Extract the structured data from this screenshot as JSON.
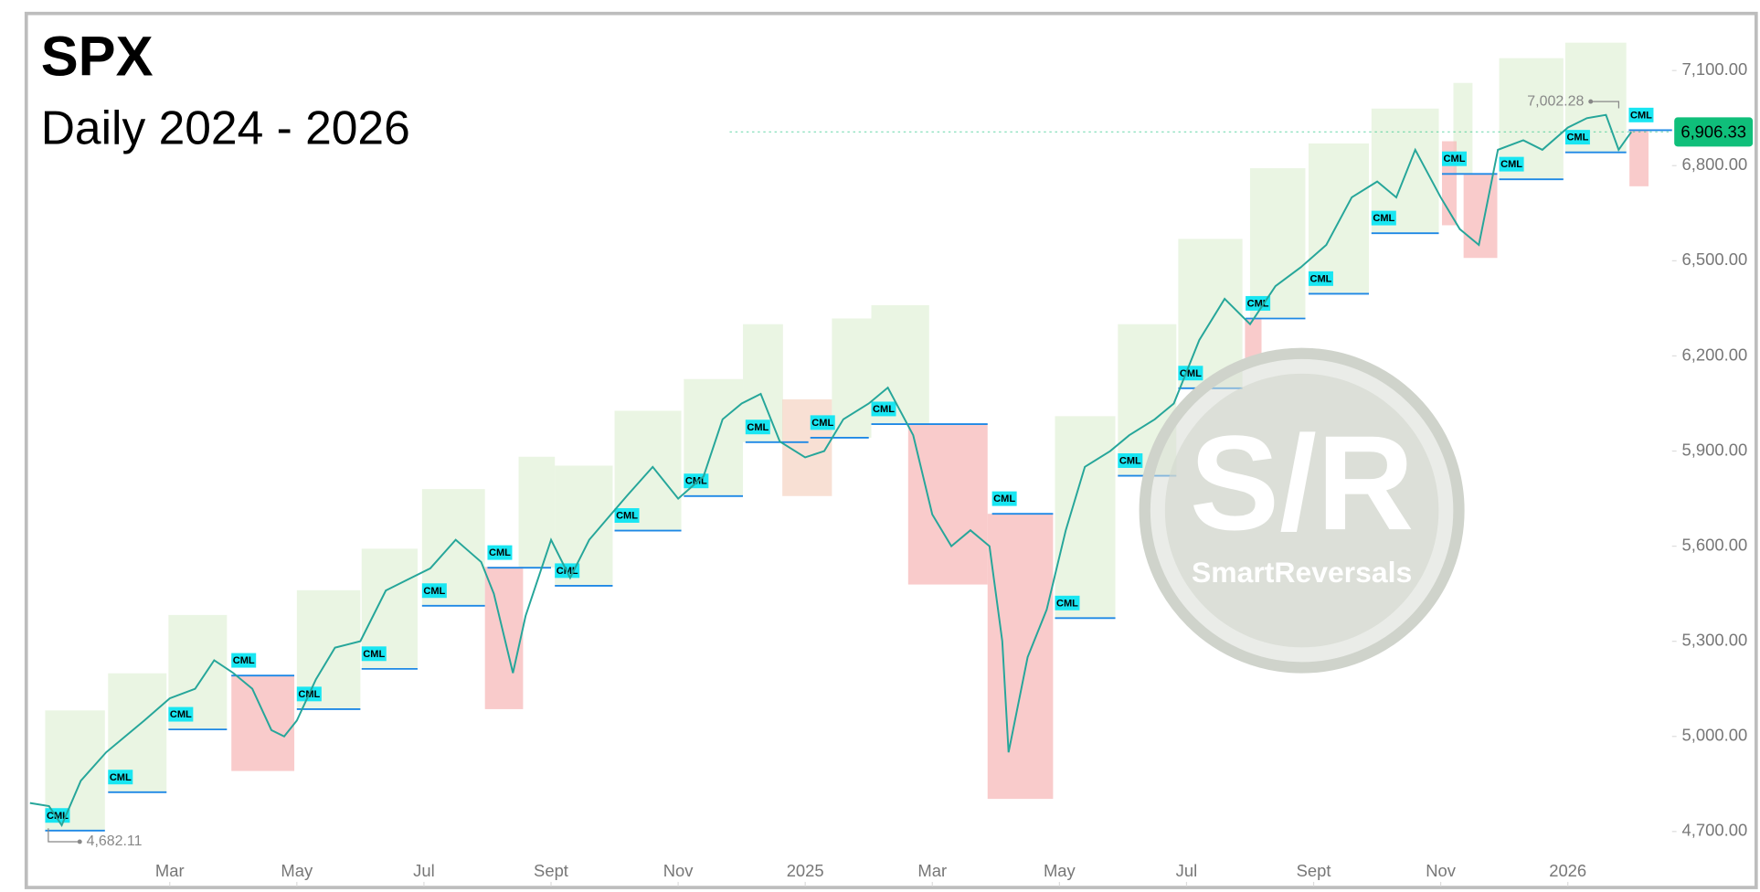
{
  "chart_data": {
    "type": "line",
    "title": "SPX",
    "subtitle": "Daily 2024 - 2026",
    "xlim": [
      -0.24,
      25.64
    ],
    "xticks": [
      {
        "value": 2,
        "label": "Mar"
      },
      {
        "value": 4,
        "label": "May"
      },
      {
        "value": 6,
        "label": "Jul"
      },
      {
        "value": 8,
        "label": "Sept"
      },
      {
        "value": 10,
        "label": "Nov"
      },
      {
        "value": 12,
        "label": "2025"
      },
      {
        "value": 14,
        "label": "Mar"
      },
      {
        "value": 16,
        "label": "May"
      },
      {
        "value": 18,
        "label": "Jul"
      },
      {
        "value": 20,
        "label": "Sept"
      },
      {
        "value": 22,
        "label": "Nov"
      },
      {
        "value": 24,
        "label": "2026"
      }
    ],
    "ylim": [
      4527,
      7280
    ],
    "yticks": [
      {
        "value": 4700,
        "label": "4,700.00"
      },
      {
        "value": 5000,
        "label": "5,000.00"
      },
      {
        "value": 5300,
        "label": "5,300.00"
      },
      {
        "value": 5600,
        "label": "5,600.00"
      },
      {
        "value": 5900,
        "label": "5,900.00"
      },
      {
        "value": 6200,
        "label": "6,200.00"
      },
      {
        "value": 6500,
        "label": "6,500.00"
      },
      {
        "value": 6800,
        "label": "6,800.00"
      },
      {
        "value": 7100,
        "label": "7,100.00"
      }
    ],
    "x": [
      -0.2,
      0.1,
      0.3,
      0.6,
      1.0,
      1.3,
      1.6,
      2.0,
      2.4,
      2.7,
      3.0,
      3.3,
      3.6,
      3.8,
      4.0,
      4.3,
      4.6,
      5.0,
      5.4,
      5.8,
      6.1,
      6.5,
      6.9,
      7.1,
      7.4,
      7.6,
      8.0,
      8.3,
      8.6,
      8.9,
      9.2,
      9.6,
      10.0,
      10.4,
      10.7,
      11.0,
      11.3,
      11.6,
      12.0,
      12.3,
      12.6,
      13.0,
      13.3,
      13.7,
      14.0,
      14.3,
      14.6,
      14.9,
      15.1,
      15.2,
      15.5,
      15.8,
      16.1,
      16.4,
      16.8,
      17.1,
      17.5,
      17.8,
      18.2,
      18.6,
      19.0,
      19.4,
      19.8,
      20.2,
      20.6,
      21.0,
      21.3,
      21.6,
      22.0,
      22.3,
      22.6,
      22.9,
      23.3,
      23.6,
      24.0,
      24.3,
      24.6,
      24.8,
      25.0
    ],
    "series": [
      {
        "color": "#26a69a",
        "values": [
          4790,
          4780,
          4720,
          4860,
          4950,
          5000,
          5050,
          5120,
          5150,
          5240,
          5200,
          5150,
          5020,
          5000,
          5050,
          5180,
          5280,
          5300,
          5460,
          5500,
          5530,
          5620,
          5550,
          5450,
          5200,
          5380,
          5620,
          5500,
          5620,
          5690,
          5760,
          5850,
          5750,
          5820,
          6000,
          6050,
          6080,
          5930,
          5880,
          5900,
          6000,
          6050,
          6100,
          5950,
          5700,
          5600,
          5650,
          5600,
          5300,
          4950,
          5250,
          5400,
          5650,
          5850,
          5900,
          5950,
          6000,
          6050,
          6250,
          6380,
          6300,
          6420,
          6480,
          6550,
          6700,
          6750,
          6700,
          6850,
          6700,
          6600,
          6550,
          6850,
          6880,
          6850,
          6920,
          6950,
          6960,
          6850,
          6906.33
        ]
      }
    ],
    "zones": [
      {
        "start": 0.04,
        "end": 0.98,
        "low": 4703,
        "high": 5082,
        "color": "#e3f2d9"
      },
      {
        "start": 1.03,
        "end": 1.95,
        "low": 4824,
        "high": 5199,
        "color": "#e3f2d9"
      },
      {
        "start": 1.98,
        "end": 2.9,
        "low": 5022,
        "high": 5383,
        "color": "#e3f2d9"
      },
      {
        "start": 4.0,
        "end": 5.0,
        "low": 5086,
        "high": 5461,
        "color": "#e3f2d9"
      },
      {
        "start": 5.02,
        "end": 5.9,
        "low": 5213,
        "high": 5592,
        "color": "#e3f2d9"
      },
      {
        "start": 5.97,
        "end": 6.96,
        "low": 5412,
        "high": 5780,
        "color": "#e3f2d9"
      },
      {
        "start": 7.49,
        "end": 8.06,
        "low": 5532,
        "high": 5882,
        "color": "#e3f2d9"
      },
      {
        "start": 8.06,
        "end": 8.97,
        "low": 5475,
        "high": 5854,
        "color": "#e3f2d9"
      },
      {
        "start": 9.0,
        "end": 10.05,
        "low": 5649,
        "high": 6027,
        "color": "#e3f2d9"
      },
      {
        "start": 10.09,
        "end": 11.02,
        "low": 5758,
        "high": 6127,
        "color": "#e3f2d9"
      },
      {
        "start": 11.02,
        "end": 11.65,
        "low": 5928,
        "high": 6300,
        "color": "#e3f2d9"
      },
      {
        "start": 12.42,
        "end": 13.04,
        "low": 5942,
        "high": 6318,
        "color": "#e3f2d9"
      },
      {
        "start": 13.04,
        "end": 13.95,
        "low": 5985,
        "high": 6360,
        "color": "#e3f2d9"
      },
      {
        "start": 15.93,
        "end": 16.88,
        "low": 5373,
        "high": 6010,
        "color": "#e3f2d9"
      },
      {
        "start": 16.92,
        "end": 17.84,
        "low": 5822,
        "high": 6300,
        "color": "#e3f2d9"
      },
      {
        "start": 17.87,
        "end": 18.88,
        "low": 6098,
        "high": 6569,
        "color": "#e3f2d9"
      },
      {
        "start": 19.0,
        "end": 19.87,
        "low": 6318,
        "high": 6792,
        "color": "#e3f2d9"
      },
      {
        "start": 19.92,
        "end": 20.87,
        "low": 6396,
        "high": 6870,
        "color": "#e3f2d9"
      },
      {
        "start": 20.91,
        "end": 21.97,
        "low": 6587,
        "high": 6980,
        "color": "#e3f2d9"
      },
      {
        "start": 22.2,
        "end": 22.5,
        "low": 6774,
        "high": 7061,
        "color": "#e3f2d9"
      },
      {
        "start": 22.92,
        "end": 23.93,
        "low": 6757,
        "high": 7139,
        "color": "#e3f2d9"
      },
      {
        "start": 23.96,
        "end": 24.92,
        "low": 6842,
        "high": 7188,
        "color": "#e3f2d9"
      },
      {
        "start": 2.97,
        "end": 3.96,
        "low": 4891,
        "high": 5192,
        "color": "#f7b9b9"
      },
      {
        "start": 6.96,
        "end": 7.56,
        "low": 5086,
        "high": 5535,
        "color": "#f7b9b9"
      },
      {
        "start": 11.64,
        "end": 12.42,
        "low": 5758,
        "high": 6063,
        "color": "#f5d5c5"
      },
      {
        "start": 13.62,
        "end": 14.87,
        "low": 5479,
        "high": 5985,
        "color": "#f7b9b9"
      },
      {
        "start": 14.87,
        "end": 15.9,
        "low": 4803,
        "high": 5702,
        "color": "#f7b9b9"
      },
      {
        "start": 18.92,
        "end": 19.18,
        "low": 6180,
        "high": 6318,
        "color": "#f7b9b9"
      },
      {
        "start": 22.02,
        "end": 22.25,
        "low": 6612,
        "high": 6877,
        "color": "#f7b9b9"
      },
      {
        "start": 22.36,
        "end": 22.89,
        "low": 6509,
        "high": 6774,
        "color": "#f7b9b9"
      },
      {
        "start": 24.97,
        "end": 25.27,
        "low": 6735,
        "high": 6912,
        "color": "#f7b9b9"
      }
    ],
    "cml_levels": [
      {
        "label": "CML",
        "start": 0.04,
        "end": 0.98,
        "value": 4703
      },
      {
        "label": "CML",
        "start": 1.03,
        "end": 1.95,
        "value": 4824
      },
      {
        "label": "CML",
        "start": 1.98,
        "end": 2.9,
        "value": 5022
      },
      {
        "label": "CML",
        "start": 2.97,
        "end": 3.96,
        "value": 5192
      },
      {
        "label": "CML",
        "start": 4.0,
        "end": 5.0,
        "value": 5086
      },
      {
        "label": "CML",
        "start": 5.02,
        "end": 5.9,
        "value": 5213
      },
      {
        "label": "CML",
        "start": 5.97,
        "end": 6.96,
        "value": 5412
      },
      {
        "label": "CML",
        "start": 7.0,
        "end": 8.0,
        "value": 5532
      },
      {
        "label": "CML",
        "start": 8.06,
        "end": 8.97,
        "value": 5475
      },
      {
        "label": "CML",
        "start": 9.0,
        "end": 10.05,
        "value": 5649
      },
      {
        "label": "CML",
        "start": 10.09,
        "end": 11.02,
        "value": 5758
      },
      {
        "label": "CML",
        "start": 11.06,
        "end": 12.05,
        "value": 5928
      },
      {
        "label": "CML",
        "start": 12.08,
        "end": 13.0,
        "value": 5942
      },
      {
        "label": "CML",
        "start": 13.04,
        "end": 14.87,
        "value": 5985
      },
      {
        "label": "CML",
        "start": 14.94,
        "end": 15.9,
        "value": 5702
      },
      {
        "label": "CML",
        "start": 15.93,
        "end": 16.88,
        "value": 5373
      },
      {
        "label": "CML",
        "start": 16.92,
        "end": 17.84,
        "value": 5822
      },
      {
        "label": "CML",
        "start": 17.87,
        "end": 18.88,
        "value": 6098
      },
      {
        "label": "CML",
        "start": 18.93,
        "end": 19.87,
        "value": 6318
      },
      {
        "label": "CML",
        "start": 19.92,
        "end": 20.87,
        "value": 6396
      },
      {
        "label": "CML",
        "start": 20.91,
        "end": 21.97,
        "value": 6587
      },
      {
        "label": "CML",
        "start": 22.02,
        "end": 22.89,
        "value": 6774
      },
      {
        "label": "CML",
        "start": 22.92,
        "end": 23.93,
        "value": 6757
      },
      {
        "label": "CML",
        "start": 23.96,
        "end": 24.92,
        "value": 6842
      },
      {
        "label": "CML",
        "start": 24.96,
        "end": 25.64,
        "value": 6912
      }
    ],
    "high_marker": {
      "x": 24.36,
      "value": 7002.28,
      "label": "7,002.28"
    },
    "low_marker": {
      "x": 0.16,
      "value": 4682.11,
      "label": "4,682.11"
    },
    "last_price": {
      "value": 6906.33,
      "label": "6,906.33",
      "color": "#0fbf7a"
    },
    "watermark": {
      "logo": "S/R",
      "brand": "SmartReversals"
    }
  }
}
